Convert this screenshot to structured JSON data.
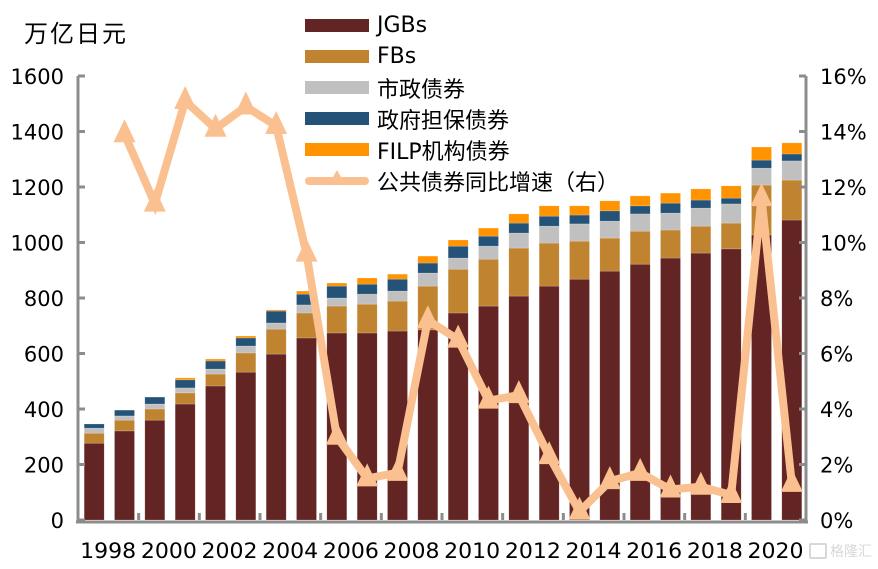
{
  "chart_data": {
    "type": "bar",
    "subtype": "stacked-bar-with-line",
    "title": "",
    "ylabel": "万亿日元",
    "y2label": "",
    "xlabel": "",
    "ylim": [
      0,
      1600
    ],
    "y2lim": [
      0,
      0.16
    ],
    "yticks": [
      "0",
      "200",
      "400",
      "600",
      "800",
      "1000",
      "1200",
      "1400",
      "1600"
    ],
    "y2ticks": [
      "0%",
      "2%",
      "4%",
      "6%",
      "8%",
      "10%",
      "12%",
      "14%",
      "16%"
    ],
    "xtick_labels": [
      "1998",
      "2000",
      "2002",
      "2004",
      "2006",
      "2008",
      "2010",
      "2012",
      "2014",
      "2016",
      "2018",
      "2020"
    ],
    "categories": [
      "1998",
      "1999",
      "2000",
      "2001",
      "2002",
      "2003",
      "2004",
      "2005",
      "2006",
      "2007",
      "2008",
      "2009",
      "2010",
      "2011",
      "2012",
      "2013",
      "2014",
      "2015",
      "2016",
      "2017",
      "2018",
      "2019",
      "2020",
      "2021"
    ],
    "series": [
      {
        "name": "JGBs",
        "color": "#632523",
        "axis": "left",
        "kind": "bar",
        "values": [
          277,
          321,
          360,
          418,
          483,
          533,
          598,
          656,
          674,
          674,
          681,
          685,
          746,
          771,
          807,
          843,
          868,
          897,
          922,
          944,
          962,
          977,
          1027,
          1081
        ]
      },
      {
        "name": "FBs",
        "color": "#C0832F",
        "axis": "left",
        "kind": "bar",
        "values": [
          36,
          39,
          40,
          40,
          43,
          69,
          90,
          90,
          97,
          104,
          108,
          158,
          158,
          169,
          173,
          155,
          137,
          119,
          119,
          101,
          97,
          93,
          180,
          144
        ]
      },
      {
        "name": "市政债券",
        "color": "#C0C0C0",
        "axis": "left",
        "kind": "bar",
        "values": [
          18,
          15,
          18,
          18,
          18,
          25,
          22,
          29,
          29,
          36,
          36,
          47,
          40,
          47,
          54,
          61,
          62,
          61,
          62,
          61,
          65,
          69,
          61,
          69
        ]
      },
      {
        "name": "政府担保债券",
        "color": "#255378",
        "axis": "left",
        "kind": "bar",
        "values": [
          15,
          21,
          25,
          29,
          29,
          29,
          43,
          39,
          43,
          36,
          43,
          36,
          43,
          36,
          36,
          36,
          32,
          37,
          29,
          36,
          29,
          21,
          29,
          25
        ]
      },
      {
        "name": "FILP机构债券",
        "color": "#FF9300",
        "axis": "left",
        "kind": "bar",
        "values": [
          0,
          0,
          0,
          7,
          7,
          7,
          4,
          11,
          11,
          22,
          18,
          25,
          22,
          29,
          33,
          37,
          33,
          36,
          36,
          36,
          40,
          44,
          47,
          40
        ]
      },
      {
        "name": "公共债券同比增速（右）",
        "color": "#FAC090",
        "axis": "right",
        "kind": "line",
        "marker": "triangle",
        "values": [
          null,
          0.139,
          0.114,
          0.151,
          0.141,
          0.149,
          0.142,
          0.096,
          0.03,
          0.015,
          0.017,
          0.072,
          0.065,
          0.043,
          0.045,
          0.023,
          0.003,
          0.014,
          0.017,
          0.011,
          0.012,
          0.009,
          0.116,
          0.013
        ]
      }
    ],
    "legend": "top-center",
    "grid": false
  },
  "watermark": "格隆汇"
}
